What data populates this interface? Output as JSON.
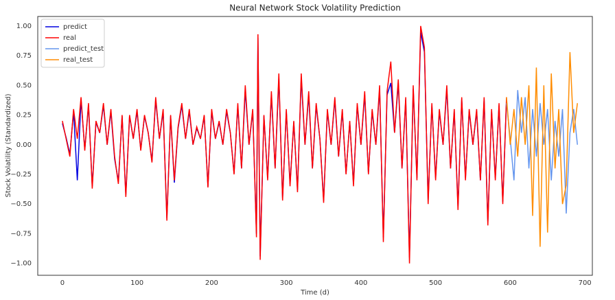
{
  "chart_data": {
    "type": "line",
    "title": "Neural Network Stock Volatility Prediction",
    "x_label": "Time (d)",
    "y_label": "Stock Volatility (Standardized)",
    "xlim": [
      -33,
      710
    ],
    "ylim": [
      -1.1,
      1.08
    ],
    "xticks": [
      0,
      100,
      200,
      300,
      400,
      500,
      600,
      700
    ],
    "yticks": [
      {
        "value": -1,
        "label": "−1.00"
      },
      {
        "value": -0.75,
        "label": "−0.75"
      },
      {
        "value": -0.5,
        "label": "−0.50"
      },
      {
        "value": -0.25,
        "label": "−0.25"
      },
      {
        "value": 0,
        "label": "0.00"
      },
      {
        "value": 0.25,
        "label": "0.25"
      },
      {
        "value": 0.5,
        "label": "0.50"
      },
      {
        "value": 0.75,
        "label": "0.75"
      },
      {
        "value": 1,
        "label": "1.00"
      }
    ],
    "grid": false,
    "legend": "upper left",
    "series": [
      {
        "name": "predict",
        "color": "#0000e0",
        "x": [
          0,
          5,
          10,
          15,
          20,
          25,
          30,
          35,
          40,
          45,
          50,
          55,
          60,
          65,
          70,
          75,
          80,
          85,
          90,
          95,
          100,
          105,
          110,
          115,
          120,
          125,
          130,
          135,
          140,
          145,
          150,
          155,
          160,
          165,
          170,
          175,
          180,
          185,
          190,
          195,
          200,
          205,
          210,
          215,
          220,
          225,
          230,
          235,
          240,
          245,
          250,
          255,
          260,
          262,
          265,
          270,
          275,
          280,
          285,
          290,
          295,
          300,
          305,
          310,
          315,
          320,
          325,
          330,
          335,
          340,
          345,
          350,
          355,
          360,
          365,
          370,
          375,
          380,
          385,
          390,
          395,
          400,
          405,
          410,
          415,
          420,
          425,
          430,
          435,
          440,
          445,
          450,
          455,
          460,
          465,
          470,
          475,
          480,
          485,
          490,
          495,
          500,
          505,
          510,
          515,
          520,
          525,
          530,
          535,
          540,
          545,
          550,
          555,
          560,
          565,
          570,
          575,
          580,
          585,
          590,
          595
        ],
        "values": [
          0.18,
          0.06,
          -0.08,
          0.28,
          -0.3,
          0.38,
          -0.04,
          0.33,
          -0.35,
          0.19,
          0.1,
          0.33,
          0.0,
          0.28,
          -0.12,
          -0.31,
          0.24,
          -0.42,
          0.24,
          0.05,
          0.28,
          -0.04,
          0.24,
          0.1,
          -0.14,
          0.38,
          0.05,
          0.28,
          -0.62,
          0.24,
          -0.32,
          0.14,
          0.33,
          0.05,
          0.28,
          0.0,
          0.14,
          0.05,
          0.24,
          -0.35,
          0.28,
          0.05,
          0.19,
          0.0,
          0.28,
          0.1,
          -0.24,
          0.33,
          -0.2,
          0.46,
          0.0,
          0.28,
          -0.75,
          0.9,
          -0.94,
          0.24,
          -0.28,
          0.42,
          -0.2,
          0.56,
          -0.45,
          0.28,
          -0.33,
          0.19,
          -0.38,
          0.56,
          0.0,
          0.42,
          -0.2,
          0.33,
          0.05,
          -0.47,
          0.28,
          0.0,
          0.38,
          -0.1,
          0.28,
          -0.24,
          0.19,
          -0.33,
          0.33,
          0.0,
          0.42,
          -0.24,
          0.28,
          0.0,
          0.47,
          -0.78,
          0.42,
          0.52,
          0.1,
          0.52,
          -0.2,
          0.38,
          -0.95,
          0.47,
          -0.28,
          0.95,
          0.78,
          -0.47,
          0.33,
          -0.28,
          0.28,
          0.0,
          0.47,
          -0.2,
          0.28,
          -0.52,
          0.38,
          -0.28,
          0.28,
          0.0,
          0.28,
          -0.3,
          0.38,
          -0.65,
          0.28,
          -0.28,
          0.33,
          -0.48,
          0.38
        ]
      },
      {
        "name": "real",
        "color": "#ff0000",
        "x": [
          0,
          5,
          10,
          15,
          20,
          25,
          30,
          35,
          40,
          45,
          50,
          55,
          60,
          65,
          70,
          75,
          80,
          85,
          90,
          95,
          100,
          105,
          110,
          115,
          120,
          125,
          130,
          135,
          140,
          145,
          150,
          155,
          160,
          165,
          170,
          175,
          180,
          185,
          190,
          195,
          200,
          205,
          210,
          215,
          220,
          225,
          230,
          235,
          240,
          245,
          250,
          255,
          260,
          262,
          265,
          270,
          275,
          280,
          285,
          290,
          295,
          300,
          305,
          310,
          315,
          320,
          325,
          330,
          335,
          340,
          345,
          350,
          355,
          360,
          365,
          370,
          375,
          380,
          385,
          390,
          395,
          400,
          405,
          410,
          415,
          420,
          425,
          430,
          435,
          440,
          445,
          450,
          455,
          460,
          465,
          470,
          475,
          480,
          485,
          490,
          495,
          500,
          505,
          510,
          515,
          520,
          525,
          530,
          535,
          540,
          545,
          550,
          555,
          560,
          565,
          570,
          575,
          580,
          585,
          590,
          595
        ],
        "values": [
          0.2,
          0.05,
          -0.1,
          0.3,
          0.05,
          0.4,
          -0.05,
          0.35,
          -0.37,
          0.2,
          0.1,
          0.35,
          0.0,
          0.3,
          -0.1,
          -0.33,
          0.25,
          -0.44,
          0.25,
          0.05,
          0.3,
          -0.05,
          0.25,
          0.1,
          -0.15,
          0.4,
          0.05,
          0.3,
          -0.64,
          0.25,
          -0.3,
          0.15,
          0.35,
          0.05,
          0.3,
          0.0,
          0.15,
          0.05,
          0.25,
          -0.36,
          0.3,
          0.05,
          0.2,
          0.0,
          0.3,
          0.1,
          -0.25,
          0.35,
          -0.2,
          0.5,
          0.0,
          0.3,
          -0.78,
          0.93,
          -0.97,
          0.25,
          -0.3,
          0.45,
          -0.2,
          0.6,
          -0.47,
          0.3,
          -0.35,
          0.2,
          -0.4,
          0.6,
          0.0,
          0.45,
          -0.2,
          0.35,
          0.05,
          -0.49,
          0.3,
          0.0,
          0.4,
          -0.1,
          0.3,
          -0.25,
          0.2,
          -0.35,
          0.35,
          0.0,
          0.45,
          -0.25,
          0.3,
          0.0,
          0.5,
          -0.82,
          0.45,
          0.7,
          0.1,
          0.55,
          -0.2,
          0.4,
          -1.0,
          0.5,
          -0.3,
          1.0,
          0.82,
          -0.5,
          0.35,
          -0.3,
          0.3,
          0.0,
          0.5,
          -0.2,
          0.3,
          -0.55,
          0.4,
          -0.3,
          0.3,
          0.0,
          0.3,
          -0.3,
          0.4,
          -0.68,
          0.3,
          -0.3,
          0.35,
          -0.5,
          0.4
        ]
      },
      {
        "name": "predict_test",
        "color": "#6495ed",
        "x": [
          595,
          600,
          605,
          610,
          615,
          620,
          625,
          630,
          635,
          640,
          645,
          650,
          655,
          660,
          665,
          670,
          675,
          680,
          685,
          690
        ],
        "values": [
          0.35,
          0.05,
          -0.3,
          0.46,
          0.1,
          0.4,
          -0.2,
          0.3,
          -0.1,
          0.35,
          0.0,
          0.3,
          -0.3,
          0.2,
          -0.1,
          0.3,
          -0.58,
          0.1,
          0.3,
          0.0
        ]
      },
      {
        "name": "real_test",
        "color": "#ff8c00",
        "x": [
          595,
          600,
          605,
          610,
          615,
          620,
          625,
          630,
          635,
          640,
          645,
          650,
          655,
          660,
          665,
          670,
          675,
          680,
          685,
          690
        ],
        "values": [
          0.4,
          0.0,
          0.3,
          -0.1,
          0.4,
          0.0,
          0.5,
          -0.6,
          0.65,
          -0.86,
          0.5,
          -0.74,
          0.6,
          -0.2,
          0.3,
          -0.5,
          -0.34,
          0.78,
          0.1,
          0.35
        ]
      }
    ]
  }
}
